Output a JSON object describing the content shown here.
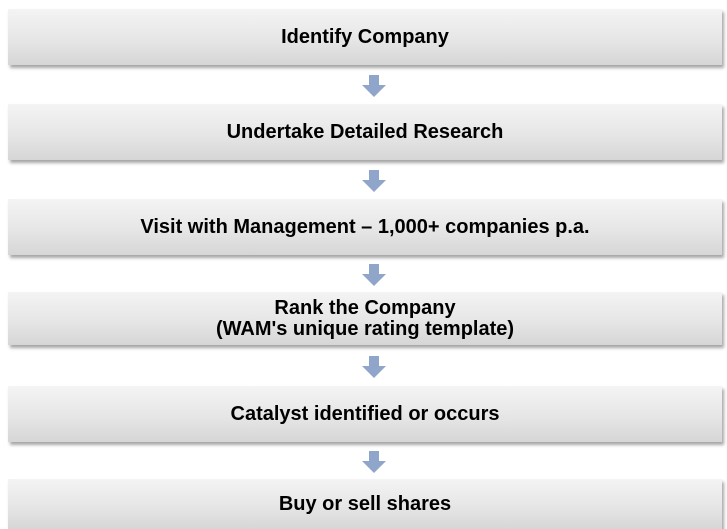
{
  "nodes": [
    {
      "lines": [
        "Identify Company"
      ]
    },
    {
      "lines": [
        "Undertake Detailed Research"
      ]
    },
    {
      "lines": [
        "Visit with Management – 1,000+ companies p.a."
      ]
    },
    {
      "lines": [
        "Rank the Company",
        "(WAM's unique rating template)"
      ]
    },
    {
      "lines": [
        "Catalyst identified or occurs"
      ]
    },
    {
      "lines": [
        "Buy or sell shares"
      ]
    }
  ]
}
